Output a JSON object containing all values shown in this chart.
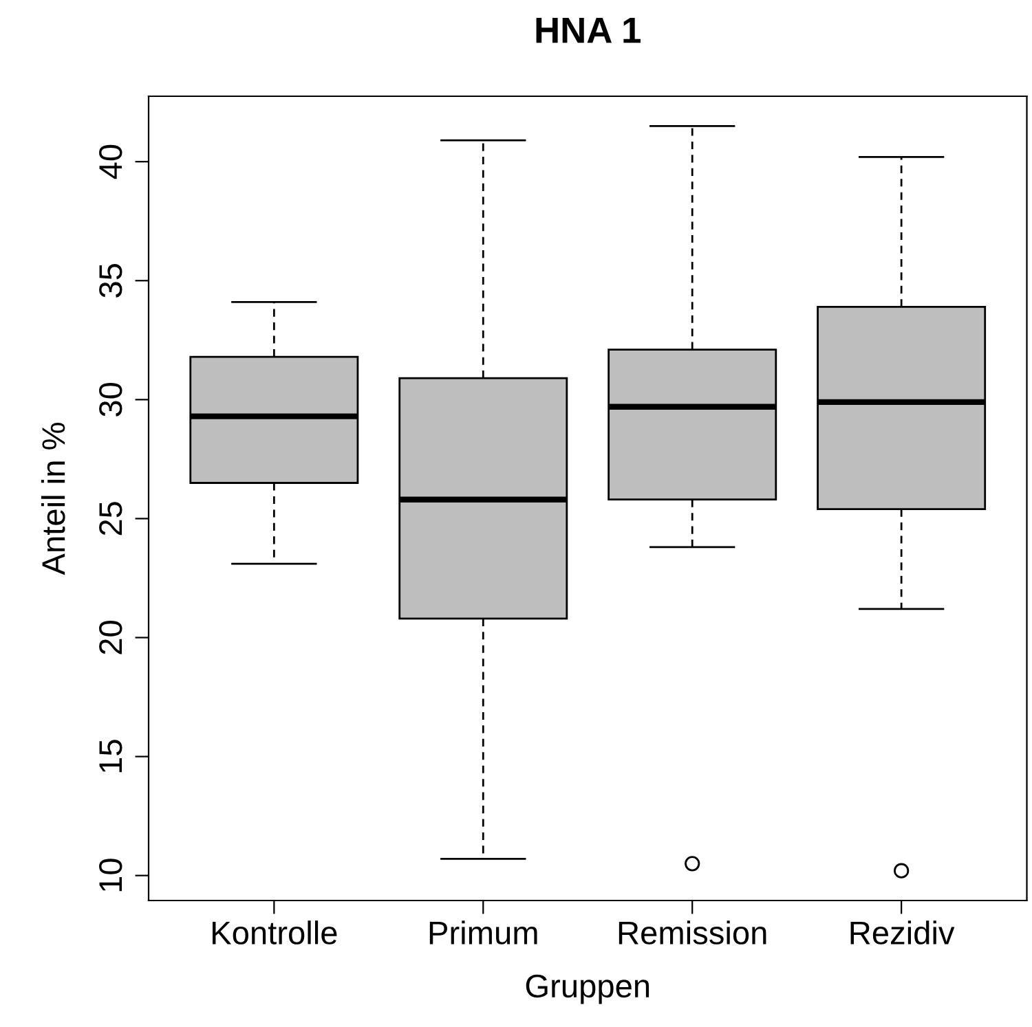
{
  "chart_data": {
    "type": "box",
    "title": "HNA 1",
    "xlabel": "Gruppen",
    "ylabel": "Anteil in %",
    "categories": [
      "Kontrolle",
      "Primum",
      "Remission",
      "Rezidiv"
    ],
    "color": "#bebebe",
    "boxes": [
      {
        "low": 23.1,
        "q1": 26.5,
        "median": 29.3,
        "q3": 31.8,
        "high": 34.1
      },
      {
        "low": 10.7,
        "q1": 20.8,
        "median": 25.8,
        "q3": 30.9,
        "high": 40.9
      },
      {
        "low": 23.8,
        "q1": 25.8,
        "median": 29.7,
        "q3": 32.1,
        "high": 41.5,
        "outliers": [
          10.5
        ]
      },
      {
        "low": 21.2,
        "q1": 25.4,
        "median": 29.9,
        "q3": 33.9,
        "high": 40.2,
        "outliers": [
          10.2
        ]
      }
    ],
    "ylim": [
      8.95,
      42.75
    ],
    "yticks": [
      10,
      15,
      20,
      25,
      30,
      35,
      40
    ],
    "grid": false
  }
}
